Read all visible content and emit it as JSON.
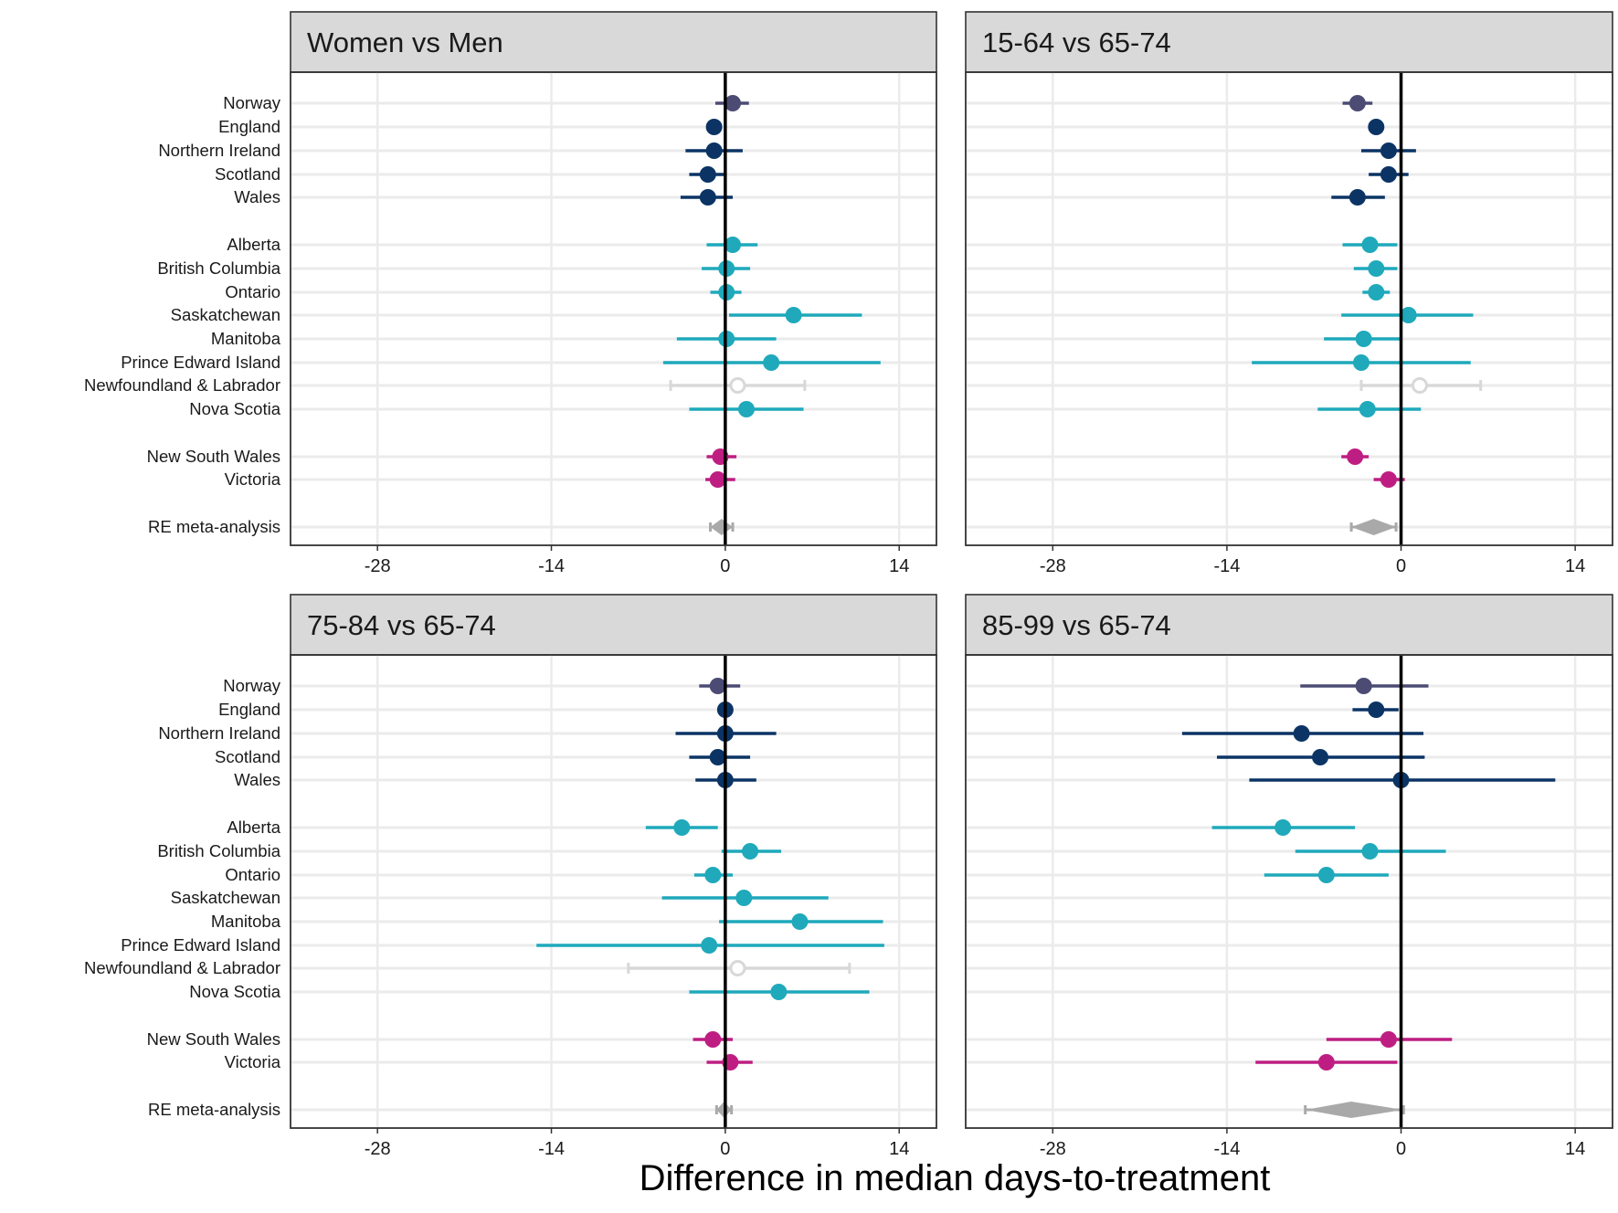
{
  "xlabel": "Difference in median days-to-treatment",
  "colors": {
    "norway": "#4b4b74",
    "uk": "#0b3465",
    "canada": "#1fa9bb",
    "australia": "#be1e82",
    "missing": "#d8d8d8",
    "meta": "#a9a9a9",
    "gridline": "#ebebeb",
    "strip": "#d9d9d9"
  },
  "chart_data": [
    {
      "type": "forest",
      "title": "Women vs Men",
      "xlim": [
        -35,
        17
      ],
      "xticks": [
        -28,
        -14,
        0,
        14
      ],
      "rows": [
        {
          "label": "Norway",
          "group": "norway",
          "est": 0.6,
          "lo": -0.8,
          "hi": 1.9
        },
        {
          "label": "England",
          "group": "uk",
          "est": -0.9,
          "lo": -1.5,
          "hi": -0.4
        },
        {
          "label": "Northern Ireland",
          "group": "uk",
          "est": -0.9,
          "lo": -3.2,
          "hi": 1.4
        },
        {
          "label": "Scotland",
          "group": "uk",
          "est": -1.4,
          "lo": -2.9,
          "hi": -0.1
        },
        {
          "label": "Wales",
          "group": "uk",
          "est": -1.4,
          "lo": -3.6,
          "hi": 0.6
        },
        {
          "label": "Alberta",
          "group": "canada",
          "est": 0.6,
          "lo": -1.5,
          "hi": 2.6
        },
        {
          "label": "British Columbia",
          "group": "canada",
          "est": 0.1,
          "lo": -1.9,
          "hi": 2.0
        },
        {
          "label": "Ontario",
          "group": "canada",
          "est": 0.1,
          "lo": -1.2,
          "hi": 1.3
        },
        {
          "label": "Saskatchewan",
          "group": "canada",
          "est": 5.5,
          "lo": 0.3,
          "hi": 11.0
        },
        {
          "label": "Manitoba",
          "group": "canada",
          "est": 0.1,
          "lo": -3.9,
          "hi": 4.1
        },
        {
          "label": "Prince Edward Island",
          "group": "canada",
          "est": 3.7,
          "lo": -5.0,
          "hi": 12.5
        },
        {
          "label": "Newfoundland & Labrador",
          "group": "missing",
          "est": 1.0,
          "lo": -4.4,
          "hi": 6.4
        },
        {
          "label": "Nova Scotia",
          "group": "canada",
          "est": 1.7,
          "lo": -2.9,
          "hi": 6.3
        },
        {
          "label": "New South Wales",
          "group": "australia",
          "est": -0.4,
          "lo": -1.5,
          "hi": 0.9
        },
        {
          "label": "Victoria",
          "group": "australia",
          "est": -0.6,
          "lo": -1.6,
          "hi": 0.8
        },
        {
          "label": "RE meta-analysis",
          "group": "meta",
          "est": -0.3,
          "lo": -1.2,
          "hi": 0.6
        }
      ]
    },
    {
      "type": "forest",
      "title": "15-64 vs 65-74",
      "xlim": [
        -35,
        17
      ],
      "xticks": [
        -28,
        -14,
        0,
        14
      ],
      "rows": [
        {
          "label": "Norway",
          "group": "norway",
          "est": -3.5,
          "lo": -4.7,
          "hi": -2.3
        },
        {
          "label": "England",
          "group": "uk",
          "est": -2.0,
          "lo": -2.6,
          "hi": -1.5
        },
        {
          "label": "Northern Ireland",
          "group": "uk",
          "est": -1.0,
          "lo": -3.2,
          "hi": 1.2
        },
        {
          "label": "Scotland",
          "group": "uk",
          "est": -1.0,
          "lo": -2.6,
          "hi": 0.6
        },
        {
          "label": "Wales",
          "group": "uk",
          "est": -3.5,
          "lo": -5.6,
          "hi": -1.3
        },
        {
          "label": "Alberta",
          "group": "canada",
          "est": -2.5,
          "lo": -4.7,
          "hi": -0.3
        },
        {
          "label": "British Columbia",
          "group": "canada",
          "est": -2.0,
          "lo": -3.8,
          "hi": -0.3
        },
        {
          "label": "Ontario",
          "group": "canada",
          "est": -2.0,
          "lo": -3.1,
          "hi": -0.9
        },
        {
          "label": "Saskatchewan",
          "group": "canada",
          "est": 0.6,
          "lo": -4.8,
          "hi": 5.8
        },
        {
          "label": "Manitoba",
          "group": "canada",
          "est": -3.0,
          "lo": -6.2,
          "hi": -0.1
        },
        {
          "label": "Prince Edward Island",
          "group": "canada",
          "est": -3.2,
          "lo": -12.0,
          "hi": 5.6
        },
        {
          "label": "Newfoundland & Labrador",
          "group": "missing",
          "est": 1.5,
          "lo": -3.2,
          "hi": 6.4
        },
        {
          "label": "Nova Scotia",
          "group": "canada",
          "est": -2.7,
          "lo": -6.7,
          "hi": 1.6
        },
        {
          "label": "New South Wales",
          "group": "australia",
          "est": -3.7,
          "lo": -4.8,
          "hi": -2.6
        },
        {
          "label": "Victoria",
          "group": "australia",
          "est": -1.0,
          "lo": -2.2,
          "hi": 0.3
        },
        {
          "label": "RE meta-analysis",
          "group": "meta",
          "est": -2.2,
          "lo": -4.0,
          "hi": -0.4
        }
      ]
    },
    {
      "type": "forest",
      "title": "75-84 vs 65-74",
      "xlim": [
        -35,
        17
      ],
      "xticks": [
        -28,
        -14,
        0,
        14
      ],
      "rows": [
        {
          "label": "Norway",
          "group": "norway",
          "est": -0.6,
          "lo": -2.1,
          "hi": 1.2
        },
        {
          "label": "England",
          "group": "uk",
          "est": 0.0,
          "lo": -0.5,
          "hi": 0.5
        },
        {
          "label": "Northern Ireland",
          "group": "uk",
          "est": 0.0,
          "lo": -4.0,
          "hi": 4.1
        },
        {
          "label": "Scotland",
          "group": "uk",
          "est": -0.6,
          "lo": -2.9,
          "hi": 2.0
        },
        {
          "label": "Wales",
          "group": "uk",
          "est": 0.0,
          "lo": -2.4,
          "hi": 2.5
        },
        {
          "label": "Alberta",
          "group": "canada",
          "est": -3.5,
          "lo": -6.4,
          "hi": -0.6
        },
        {
          "label": "British Columbia",
          "group": "canada",
          "est": 2.0,
          "lo": -0.3,
          "hi": 4.5
        },
        {
          "label": "Ontario",
          "group": "canada",
          "est": -1.0,
          "lo": -2.5,
          "hi": 0.6
        },
        {
          "label": "Saskatchewan",
          "group": "canada",
          "est": 1.5,
          "lo": -5.1,
          "hi": 8.3
        },
        {
          "label": "Manitoba",
          "group": "canada",
          "est": 6.0,
          "lo": -0.5,
          "hi": 12.7
        },
        {
          "label": "Prince Edward Island",
          "group": "canada",
          "est": -1.3,
          "lo": -15.2,
          "hi": 12.8
        },
        {
          "label": "Newfoundland & Labrador",
          "group": "missing",
          "est": 1.0,
          "lo": -7.8,
          "hi": 10.0
        },
        {
          "label": "Nova Scotia",
          "group": "canada",
          "est": 4.3,
          "lo": -2.9,
          "hi": 11.6
        },
        {
          "label": "New South Wales",
          "group": "australia",
          "est": -1.0,
          "lo": -2.6,
          "hi": 0.6
        },
        {
          "label": "Victoria",
          "group": "australia",
          "est": 0.4,
          "lo": -1.5,
          "hi": 2.2
        },
        {
          "label": "RE meta-analysis",
          "group": "meta",
          "est": -0.1,
          "lo": -0.7,
          "hi": 0.5
        }
      ]
    },
    {
      "type": "forest",
      "title": "85-99 vs 65-74",
      "xlim": [
        -35,
        17
      ],
      "xticks": [
        -28,
        -14,
        0,
        14
      ],
      "rows": [
        {
          "label": "Norway",
          "group": "norway",
          "est": -3.0,
          "lo": -8.1,
          "hi": 2.2
        },
        {
          "label": "England",
          "group": "uk",
          "est": -2.0,
          "lo": -3.9,
          "hi": -0.2
        },
        {
          "label": "Northern Ireland",
          "group": "uk",
          "est": -8.0,
          "lo": -17.6,
          "hi": 1.8
        },
        {
          "label": "Scotland",
          "group": "uk",
          "est": -6.5,
          "lo": -14.8,
          "hi": 1.9
        },
        {
          "label": "Wales",
          "group": "uk",
          "est": 0.0,
          "lo": -12.2,
          "hi": 12.4
        },
        {
          "label": "Alberta",
          "group": "canada",
          "est": -9.5,
          "lo": -15.2,
          "hi": -3.7
        },
        {
          "label": "British Columbia",
          "group": "canada",
          "est": -2.5,
          "lo": -8.5,
          "hi": 3.6
        },
        {
          "label": "Ontario",
          "group": "canada",
          "est": -6.0,
          "lo": -11.0,
          "hi": -1.0
        },
        {
          "label": "New South Wales",
          "group": "australia",
          "est": -1.0,
          "lo": -6.0,
          "hi": 4.1
        },
        {
          "label": "Victoria",
          "group": "australia",
          "est": -6.0,
          "lo": -11.7,
          "hi": -0.3
        },
        {
          "label": "RE meta-analysis",
          "group": "meta",
          "est": -4.0,
          "lo": -7.7,
          "hi": 0.2
        }
      ]
    }
  ]
}
